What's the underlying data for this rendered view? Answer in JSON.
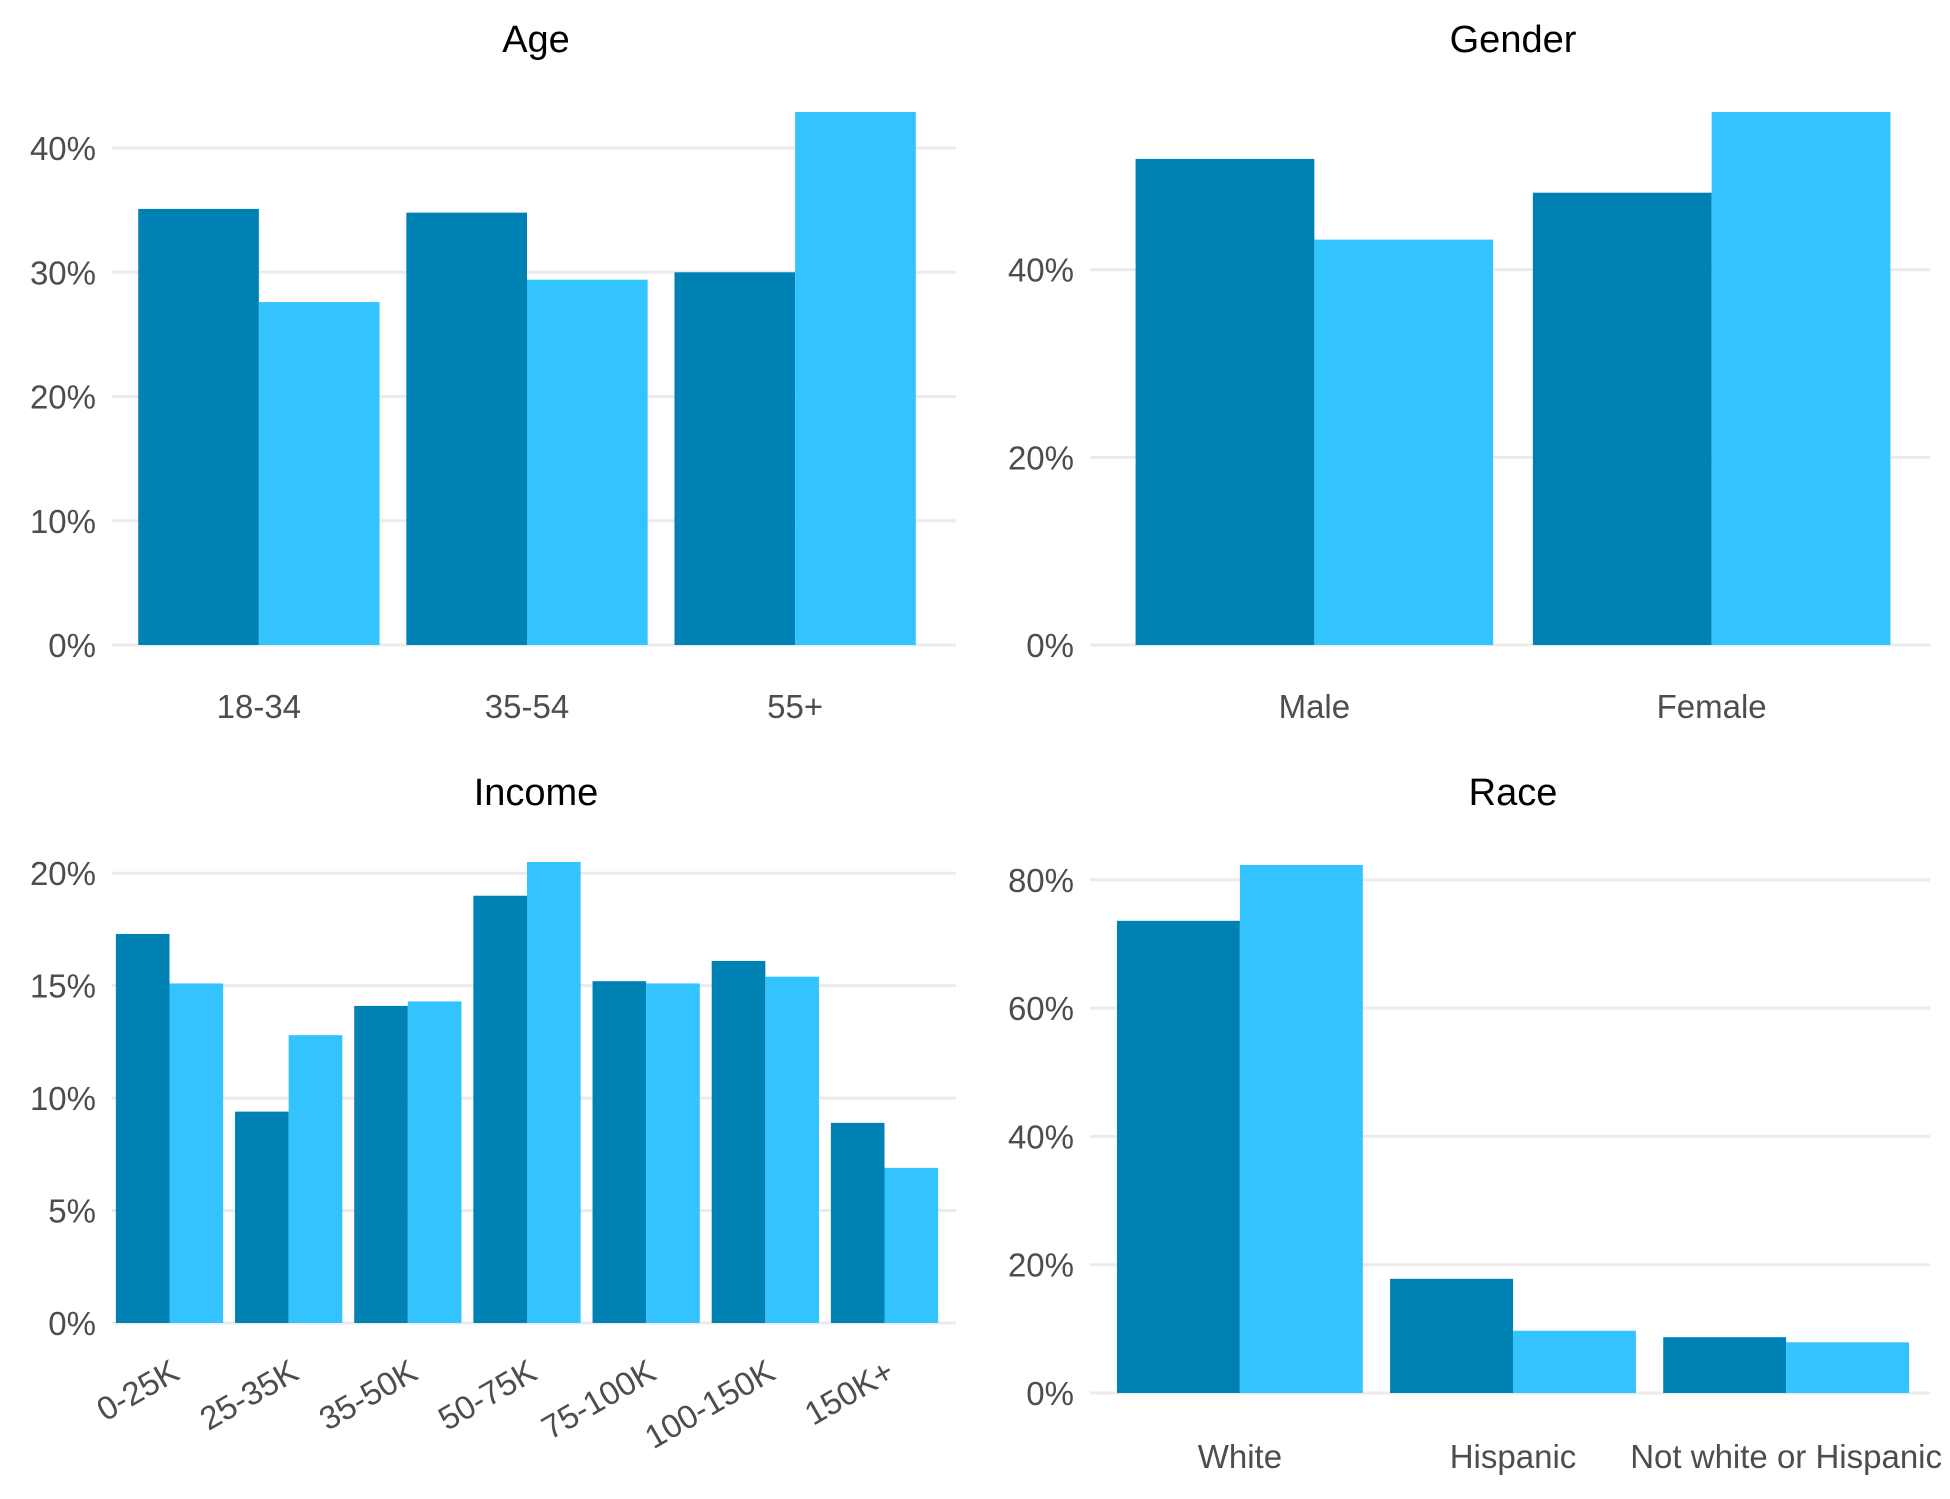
{
  "colors": {
    "series_dark": "#0081b4",
    "series_light": "#33c4ff",
    "grid": "#ebebeb",
    "text": "#4d4d4d"
  },
  "chart_data": [
    {
      "type": "bar",
      "title": "Age",
      "categories": [
        "18-34",
        "35-54",
        "55+"
      ],
      "series": [
        {
          "values": [
            35.1,
            34.8,
            30.0
          ]
        },
        {
          "values": [
            27.6,
            29.4,
            42.9
          ]
        }
      ],
      "ylim": [
        0,
        42.9
      ],
      "yticks": [
        0,
        10,
        20,
        30,
        40
      ],
      "ytick_labels": [
        "0%",
        "10%",
        "20%",
        "30%",
        "40%"
      ],
      "xlabel": "",
      "ylabel": "",
      "grid": true
    },
    {
      "type": "bar",
      "title": "Gender",
      "categories": [
        "Male",
        "Female"
      ],
      "series": [
        {
          "values": [
            51.8,
            48.2
          ]
        },
        {
          "values": [
            43.2,
            56.8
          ]
        }
      ],
      "ylim": [
        0,
        56.8
      ],
      "yticks": [
        0,
        20,
        40
      ],
      "ytick_labels": [
        "0%",
        "20%",
        "40%"
      ],
      "xlabel": "",
      "ylabel": "",
      "grid": true
    },
    {
      "type": "bar",
      "title": "Income",
      "categories": [
        "0-25K",
        "25-35K",
        "35-50K",
        "50-75K",
        "75-100K",
        "100-150K",
        "150K+"
      ],
      "series": [
        {
          "values": [
            17.3,
            9.4,
            14.1,
            19.0,
            15.2,
            16.1,
            8.9
          ]
        },
        {
          "values": [
            15.1,
            12.8,
            14.3,
            20.5,
            15.1,
            15.4,
            6.9
          ]
        }
      ],
      "ylim": [
        0,
        20.5
      ],
      "yticks": [
        0,
        5,
        10,
        15,
        20
      ],
      "ytick_labels": [
        "0%",
        "5%",
        "10%",
        "15%",
        "20%"
      ],
      "xlabel": "",
      "ylabel": "",
      "grid": true,
      "rotate_x_labels": true
    },
    {
      "type": "bar",
      "title": "Race",
      "categories": [
        "White",
        "Hispanic",
        "Not white or Hispanic"
      ],
      "series": [
        {
          "values": [
            73.6,
            17.8,
            8.7
          ]
        },
        {
          "values": [
            82.3,
            9.7,
            7.9
          ]
        }
      ],
      "ylim": [
        0,
        82.3
      ],
      "yticks": [
        0,
        20,
        40,
        60,
        80
      ],
      "ytick_labels": [
        "0%",
        "20%",
        "40%",
        "60%",
        "80%"
      ],
      "xlabel": "",
      "ylabel": "",
      "grid": true
    }
  ]
}
